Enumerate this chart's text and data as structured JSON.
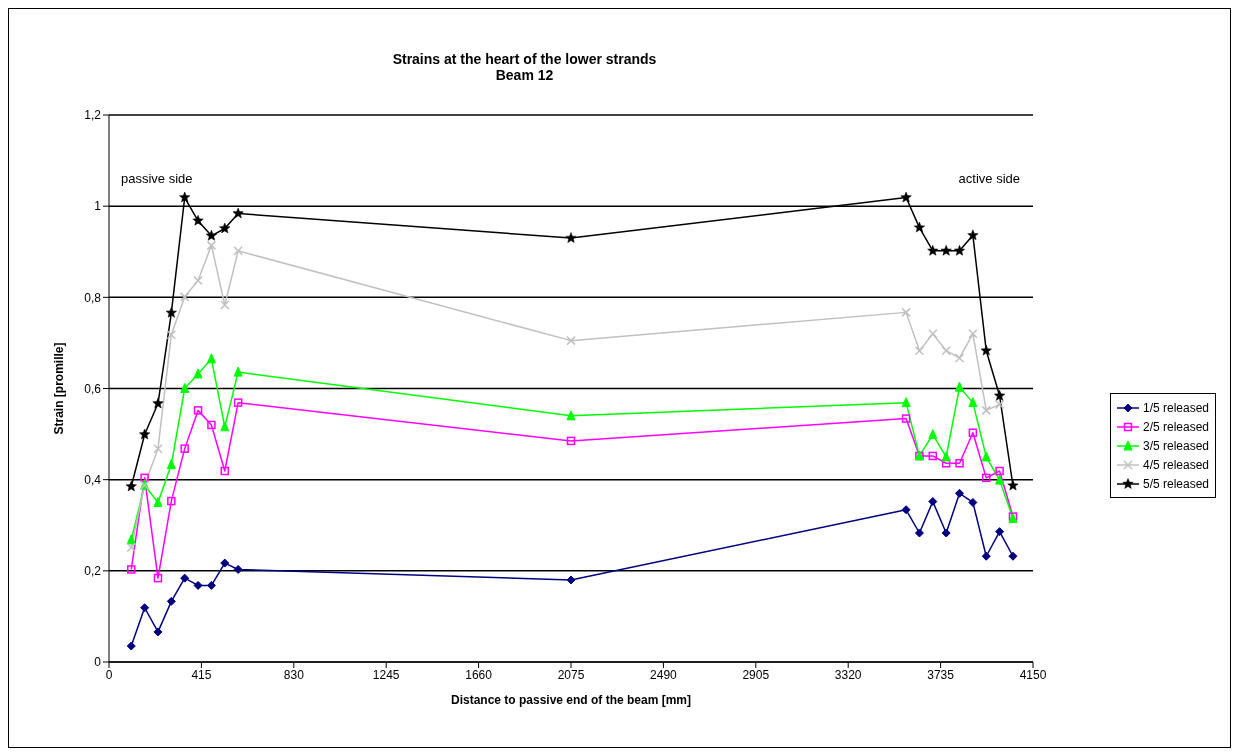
{
  "chart_data": {
    "type": "line",
    "title": "Strains at the heart of the lower strands",
    "subtitle": "Beam 12",
    "xlabel": "Distance to passive end of the beam [mm]",
    "ylabel": "Strain  [promille]",
    "annotations": [
      "passive side",
      "active side"
    ],
    "x": [
      100,
      160,
      220,
      280,
      340,
      400,
      460,
      520,
      580,
      2075,
      3580,
      3640,
      3700,
      3760,
      3820,
      3880,
      3940,
      4000,
      4060
    ],
    "series": [
      {
        "name": "1/5 released",
        "color": "#000080",
        "marker": "diamond",
        "values": [
          0.035,
          0.119,
          0.066,
          0.133,
          0.184,
          0.168,
          0.168,
          0.217,
          0.203,
          0.18,
          0.334,
          0.283,
          0.352,
          0.283,
          0.37,
          0.35,
          0.232,
          0.286,
          0.232
        ]
      },
      {
        "name": "2/5 released",
        "color": "#ff00ff",
        "marker": "square",
        "values": [
          0.203,
          0.404,
          0.184,
          0.353,
          0.468,
          0.552,
          0.52,
          0.419,
          0.569,
          0.485,
          0.534,
          0.452,
          0.452,
          0.436,
          0.436,
          0.503,
          0.404,
          0.419,
          0.319
        ]
      },
      {
        "name": "3/5 released",
        "color": "#00ff00",
        "marker": "triangle",
        "values": [
          0.268,
          0.388,
          0.35,
          0.433,
          0.6,
          0.632,
          0.665,
          0.516,
          0.636,
          0.54,
          0.569,
          0.452,
          0.499,
          0.45,
          0.603,
          0.569,
          0.45,
          0.399,
          0.315
        ]
      },
      {
        "name": "4/5 released",
        "color": "#c0c0c0",
        "marker": "cross",
        "values": [
          0.251,
          0.388,
          0.468,
          0.718,
          0.801,
          0.837,
          0.914,
          0.783,
          0.902,
          0.705,
          0.767,
          0.683,
          0.72,
          0.683,
          0.667,
          0.72,
          0.552,
          0.565,
          null
        ]
      },
      {
        "name": "5/5 released",
        "color": "#000000",
        "marker": "star",
        "values": [
          0.385,
          0.499,
          0.567,
          0.766,
          1.019,
          0.968,
          0.935,
          0.951,
          0.984,
          0.93,
          1.019,
          0.953,
          0.902,
          0.902,
          0.902,
          0.936,
          0.683,
          0.584,
          0.387
        ]
      }
    ],
    "xlim": [
      0,
      4150
    ],
    "xticks": [
      0,
      415,
      830,
      1245,
      1660,
      2075,
      2490,
      2905,
      3320,
      3735,
      4150
    ],
    "ylim": [
      0,
      1.2
    ],
    "yticks": [
      0,
      {
        "value": 0.2,
        "label": "0,2"
      },
      {
        "value": 0.4,
        "label": "0,4"
      },
      {
        "value": 0.6,
        "label": "0,6"
      },
      {
        "value": 0.8,
        "label": "0,8"
      },
      1,
      {
        "value": 1.2,
        "label": "1,2"
      }
    ],
    "grid": "y",
    "legend": "right",
    "line_style": "solid"
  }
}
